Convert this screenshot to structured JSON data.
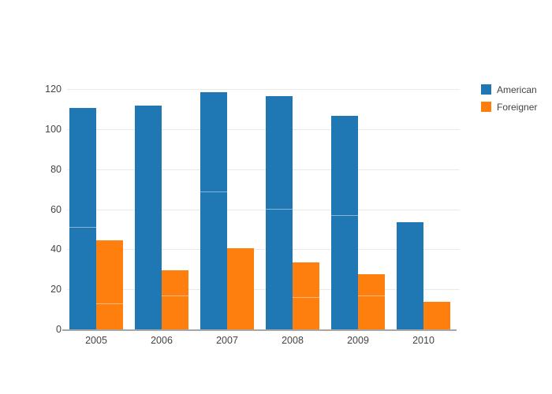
{
  "chart_data": {
    "type": "bar",
    "title": "",
    "xlabel": "",
    "ylabel": "",
    "categories": [
      "2005",
      "2006",
      "2007",
      "2008",
      "2009",
      "2010"
    ],
    "series": [
      {
        "name": "American",
        "color": "#1f77b4",
        "values": [
          111,
          112,
          119,
          117,
          107,
          54
        ],
        "segment_lines": [
          51,
          null,
          69,
          60,
          57,
          null
        ]
      },
      {
        "name": "Foreigner",
        "color": "#ff7f0e",
        "values": [
          45,
          30,
          41,
          34,
          28,
          14
        ],
        "segment_lines": [
          13,
          17,
          null,
          16,
          17,
          null
        ]
      }
    ],
    "ylim": [
      0,
      127.5
    ],
    "yticks": [
      0,
      20,
      40,
      60,
      80,
      100,
      120
    ],
    "grid": true,
    "legend_position": "top-right",
    "colors": {
      "background": "#ffffff",
      "gridline": "#e9e9e9",
      "axis_line": "#a7a7a7",
      "tick_text": "#444444"
    }
  }
}
